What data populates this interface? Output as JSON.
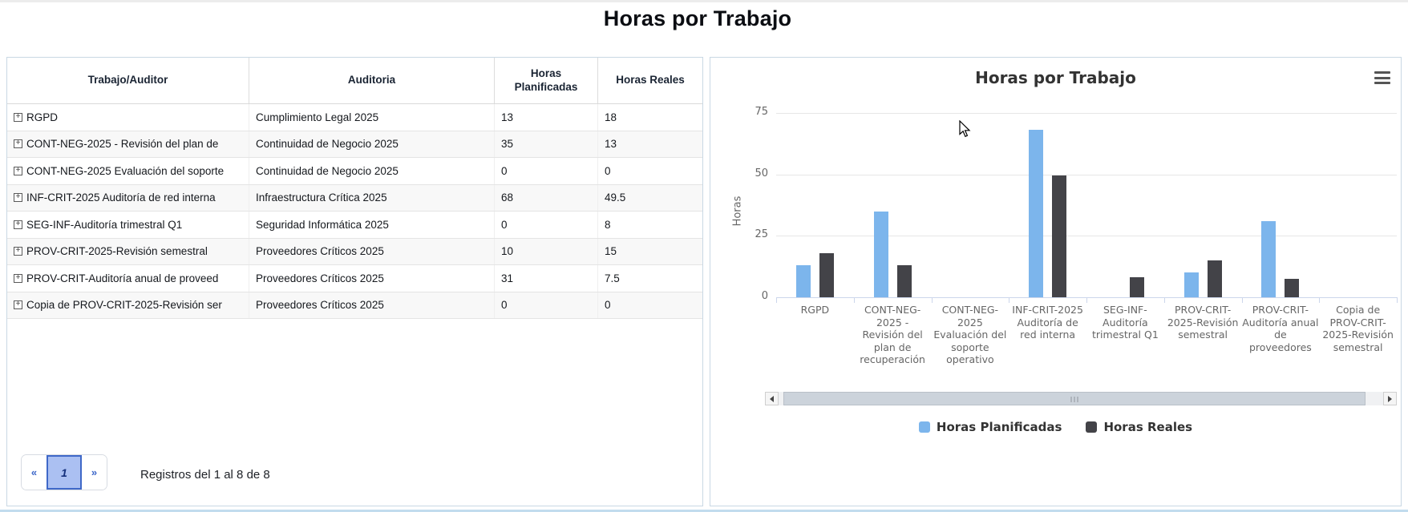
{
  "page": {
    "title": "Horas por Trabajo"
  },
  "colors": {
    "planned_blue": "#7cb5ec",
    "real_dark": "#434348",
    "gridline": "#e6e6e6",
    "axis_line": "#ccd6eb",
    "panel_border": "#c9d8e4",
    "pager_active_bg": "#abc0f2",
    "pager_active_border": "#3f68c8"
  },
  "icons": {
    "row_expand": "plus-box",
    "chart_menu": "hamburger",
    "scroll_left": "left-arrow",
    "scroll_right": "right-arrow",
    "pointer": "mouse-arrow"
  },
  "table": {
    "columns": [
      "Trabajo/Auditor",
      "Auditoria",
      "Horas Planificadas",
      "Horas Reales"
    ],
    "rows": [
      {
        "trabajo": "RGPD",
        "auditoria": "Cumplimiento Legal 2025",
        "planificadas": "13",
        "reales": "18"
      },
      {
        "trabajo": "CONT-NEG-2025 - Revisión del plan de",
        "auditoria": "Continuidad de Negocio 2025",
        "planificadas": "35",
        "reales": "13"
      },
      {
        "trabajo": "CONT-NEG-2025 Evaluación del soporte",
        "auditoria": "Continuidad de Negocio 2025",
        "planificadas": "0",
        "reales": "0"
      },
      {
        "trabajo": "INF-CRIT-2025 Auditoría de red interna",
        "auditoria": "Infraestructura Crítica 2025",
        "planificadas": "68",
        "reales": "49.5"
      },
      {
        "trabajo": "SEG-INF-Auditoría trimestral Q1",
        "auditoria": "Seguridad Informática 2025",
        "planificadas": "0",
        "reales": "8"
      },
      {
        "trabajo": "PROV-CRIT-2025-Revisión semestral",
        "auditoria": "Proveedores Críticos 2025",
        "planificadas": "10",
        "reales": "15"
      },
      {
        "trabajo": "PROV-CRIT-Auditoría anual de proveed",
        "auditoria": "Proveedores Críticos 2025",
        "planificadas": "31",
        "reales": "7.5"
      },
      {
        "trabajo": "Copia de PROV-CRIT-2025-Revisión ser",
        "auditoria": "Proveedores Críticos 2025",
        "planificadas": "0",
        "reales": "0"
      }
    ],
    "pagination": {
      "prev": "«",
      "current": "1",
      "next": "»",
      "summary": "Registros del 1 al 8 de 8"
    }
  },
  "chart_data": {
    "type": "bar",
    "title": "Horas por Trabajo",
    "xlabel": "",
    "ylabel": "Horas",
    "ylim": [
      0,
      75
    ],
    "yticks": [
      0,
      25,
      50,
      75
    ],
    "grid": true,
    "legend_position": "bottom",
    "categories": [
      "RGPD",
      "CONT-NEG-2025 - Revisión del plan de recuperación",
      "CONT-NEG-2025 Evaluación del soporte operativo",
      "INF-CRIT-2025 Auditoría de red interna",
      "SEG-INF-Auditoría trimestral Q1",
      "PROV-CRIT-2025-Revisión semestral",
      "PROV-CRIT-Auditoría anual de proveedores",
      "Copia de PROV-CRIT-2025-Revisión semestral"
    ],
    "series": [
      {
        "name": "Horas Planificadas",
        "color": "#7cb5ec",
        "values": [
          13,
          35,
          0,
          68,
          0,
          10,
          31,
          0
        ]
      },
      {
        "name": "Horas Reales",
        "color": "#434348",
        "values": [
          18,
          13,
          0,
          49.5,
          8,
          15,
          7.5,
          0
        ]
      }
    ]
  }
}
